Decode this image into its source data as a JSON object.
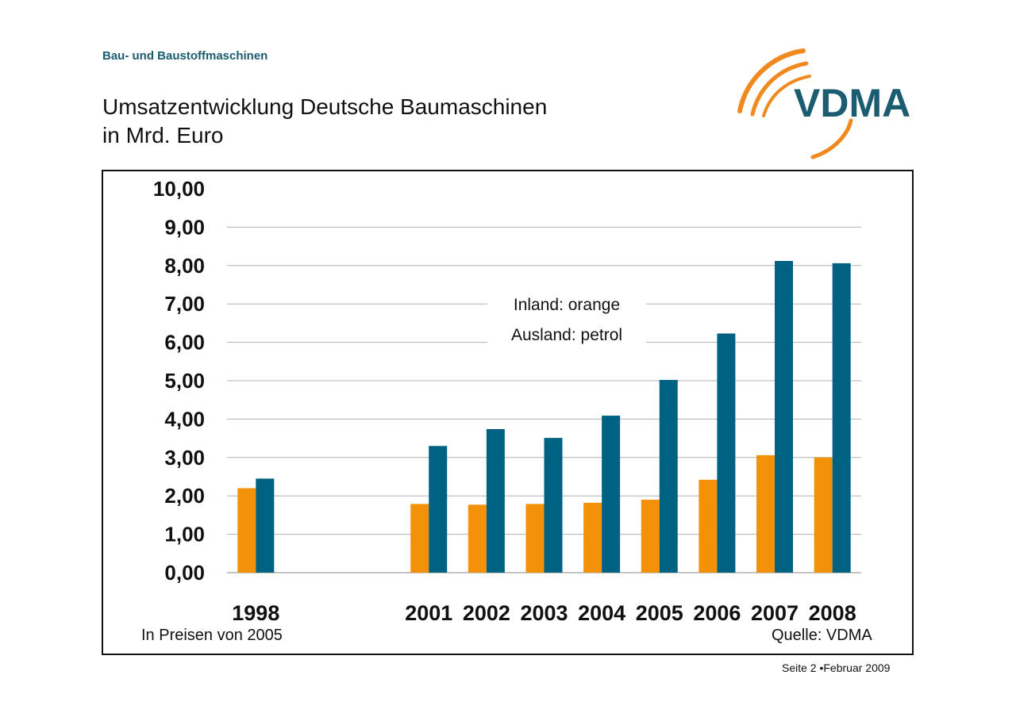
{
  "header": {
    "supertitle": "Bau- und Baustoffmaschinen",
    "title_line1": "Umsatzentwicklung Deutsche Baumaschinen",
    "title_line2": "in Mrd. Euro"
  },
  "logo": {
    "text": "VDMA",
    "colors": {
      "text": "#1b5c70",
      "arcs": "#f0891e"
    }
  },
  "legend": {
    "line1": "Inland: orange",
    "line2": "Ausland: petrol"
  },
  "footer": {
    "note_left": "In Preisen von 2005",
    "note_right": "Quelle: VDMA",
    "page": "Seite 2 •Februar 2009"
  },
  "colors": {
    "inland": "#f39208",
    "ausland": "#006283",
    "grid": "#b0b0b0"
  },
  "chart_data": {
    "type": "bar",
    "categories": [
      "1998",
      "",
      "",
      "2001",
      "2002",
      "2003",
      "2004",
      "2005",
      "2006",
      "2007",
      "2008"
    ],
    "series": [
      {
        "name": "Inland",
        "values": [
          2.2,
          null,
          null,
          1.79,
          1.77,
          1.79,
          1.82,
          1.9,
          2.42,
          3.06,
          3.0
        ]
      },
      {
        "name": "Ausland",
        "values": [
          2.45,
          null,
          null,
          3.3,
          3.74,
          3.51,
          4.09,
          5.02,
          6.23,
          8.12,
          8.06
        ]
      }
    ],
    "yticks": [
      "0,00",
      "1,00",
      "2,00",
      "3,00",
      "4,00",
      "5,00",
      "6,00",
      "7,00",
      "8,00",
      "9,00",
      "10,00"
    ],
    "ylim": [
      0,
      10
    ],
    "grid": true
  }
}
